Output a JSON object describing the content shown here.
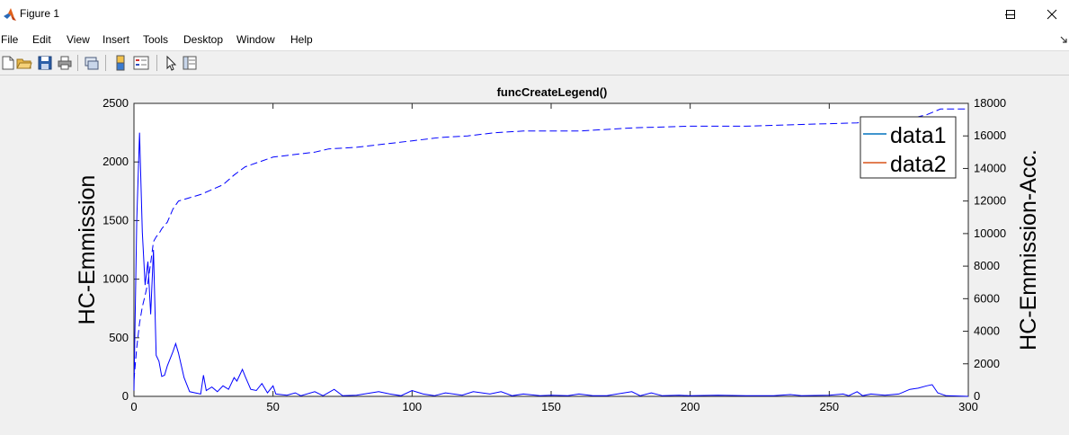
{
  "window": {
    "title": "Figure 1",
    "controls": [
      "minimize",
      "maximize",
      "close"
    ]
  },
  "menu": {
    "items": [
      "File",
      "Edit",
      "View",
      "Insert",
      "Tools",
      "Desktop",
      "Window",
      "Help"
    ]
  },
  "toolbar": {
    "icons": [
      "new-figure-icon",
      "open-file-icon",
      "save-icon",
      "print-icon",
      "link-plot-icon",
      "insert-colorbar-icon",
      "insert-legend-icon",
      "edit-plot-arrow-icon",
      "property-inspector-icon"
    ]
  },
  "chart_data": {
    "type": "line",
    "title": "funcCreateLegend()",
    "xlabel": "",
    "ylabel_left": "HC-Emmission",
    "ylabel_right": "HC-Emmission-Acc.",
    "xlim": [
      0,
      300
    ],
    "ylim_left": [
      0,
      2500
    ],
    "ylim_right": [
      0,
      18000
    ],
    "xticks": [
      "0",
      "50",
      "100",
      "150",
      "200",
      "250",
      "300"
    ],
    "yticks_left": [
      "0",
      "500",
      "1000",
      "1500",
      "2000",
      "2500"
    ],
    "yticks_right": [
      "0",
      "2000",
      "4000",
      "6000",
      "8000",
      "10000",
      "12000",
      "14000",
      "16000",
      "18000"
    ],
    "grid": false,
    "legend": {
      "position": "top-right",
      "entries": [
        {
          "label": "data1",
          "color": "#0072bd"
        },
        {
          "label": "data2",
          "color": "#d95319"
        }
      ]
    },
    "series": [
      {
        "axis": "left",
        "style": "solid",
        "color": "#0000ff",
        "points": [
          [
            0,
            50
          ],
          [
            1,
            1500
          ],
          [
            2,
            2250
          ],
          [
            3,
            1400
          ],
          [
            4,
            950
          ],
          [
            5,
            1150
          ],
          [
            6,
            700
          ],
          [
            7,
            1250
          ],
          [
            8,
            350
          ],
          [
            9,
            300
          ],
          [
            10,
            170
          ],
          [
            11,
            180
          ],
          [
            12,
            260
          ],
          [
            14,
            380
          ],
          [
            15,
            450
          ],
          [
            16,
            370
          ],
          [
            18,
            160
          ],
          [
            20,
            40
          ],
          [
            22,
            30
          ],
          [
            24,
            20
          ],
          [
            25,
            180
          ],
          [
            26,
            50
          ],
          [
            28,
            80
          ],
          [
            30,
            40
          ],
          [
            32,
            90
          ],
          [
            34,
            60
          ],
          [
            36,
            160
          ],
          [
            37,
            130
          ],
          [
            39,
            230
          ],
          [
            40,
            170
          ],
          [
            42,
            60
          ],
          [
            44,
            50
          ],
          [
            46,
            110
          ],
          [
            48,
            30
          ],
          [
            50,
            90
          ],
          [
            51,
            20
          ],
          [
            55,
            10
          ],
          [
            58,
            30
          ],
          [
            60,
            5
          ],
          [
            65,
            40
          ],
          [
            68,
            5
          ],
          [
            72,
            60
          ],
          [
            75,
            5
          ],
          [
            80,
            10
          ],
          [
            88,
            40
          ],
          [
            92,
            20
          ],
          [
            96,
            5
          ],
          [
            100,
            50
          ],
          [
            104,
            20
          ],
          [
            108,
            5
          ],
          [
            112,
            30
          ],
          [
            118,
            10
          ],
          [
            122,
            40
          ],
          [
            128,
            20
          ],
          [
            132,
            40
          ],
          [
            136,
            5
          ],
          [
            140,
            20
          ],
          [
            146,
            5
          ],
          [
            150,
            10
          ],
          [
            156,
            5
          ],
          [
            160,
            20
          ],
          [
            165,
            5
          ],
          [
            170,
            5
          ],
          [
            179,
            40
          ],
          [
            182,
            5
          ],
          [
            186,
            30
          ],
          [
            190,
            5
          ],
          [
            196,
            10
          ],
          [
            200,
            5
          ],
          [
            210,
            10
          ],
          [
            220,
            5
          ],
          [
            230,
            5
          ],
          [
            236,
            15
          ],
          [
            240,
            5
          ],
          [
            250,
            10
          ],
          [
            255,
            20
          ],
          [
            257,
            5
          ],
          [
            260,
            40
          ],
          [
            262,
            5
          ],
          [
            265,
            20
          ],
          [
            270,
            10
          ],
          [
            275,
            20
          ],
          [
            279,
            60
          ],
          [
            282,
            70
          ],
          [
            285,
            90
          ],
          [
            287,
            100
          ],
          [
            289,
            30
          ],
          [
            292,
            5
          ],
          [
            300,
            0
          ]
        ]
      },
      {
        "axis": "right",
        "style": "dashed",
        "color": "#0000ff",
        "points": [
          [
            0,
            1000
          ],
          [
            1,
            3000
          ],
          [
            2,
            4500
          ],
          [
            3,
            5500
          ],
          [
            4,
            6200
          ],
          [
            5,
            7000
          ],
          [
            6,
            8200
          ],
          [
            7,
            9500
          ],
          [
            8,
            9800
          ],
          [
            9,
            10000
          ],
          [
            10,
            10300
          ],
          [
            12,
            10700
          ],
          [
            14,
            11500
          ],
          [
            16,
            12000
          ],
          [
            18,
            12100
          ],
          [
            20,
            12200
          ],
          [
            24,
            12400
          ],
          [
            28,
            12700
          ],
          [
            32,
            13000
          ],
          [
            36,
            13600
          ],
          [
            40,
            14100
          ],
          [
            45,
            14400
          ],
          [
            50,
            14700
          ],
          [
            55,
            14800
          ],
          [
            60,
            14900
          ],
          [
            65,
            15000
          ],
          [
            70,
            15200
          ],
          [
            80,
            15300
          ],
          [
            90,
            15500
          ],
          [
            100,
            15700
          ],
          [
            110,
            15900
          ],
          [
            120,
            16000
          ],
          [
            130,
            16200
          ],
          [
            140,
            16300
          ],
          [
            160,
            16300
          ],
          [
            180,
            16500
          ],
          [
            200,
            16600
          ],
          [
            220,
            16600
          ],
          [
            240,
            16700
          ],
          [
            260,
            16800
          ],
          [
            270,
            17000
          ],
          [
            280,
            17100
          ],
          [
            285,
            17300
          ],
          [
            290,
            17650
          ],
          [
            300,
            17650
          ]
        ]
      }
    ]
  }
}
